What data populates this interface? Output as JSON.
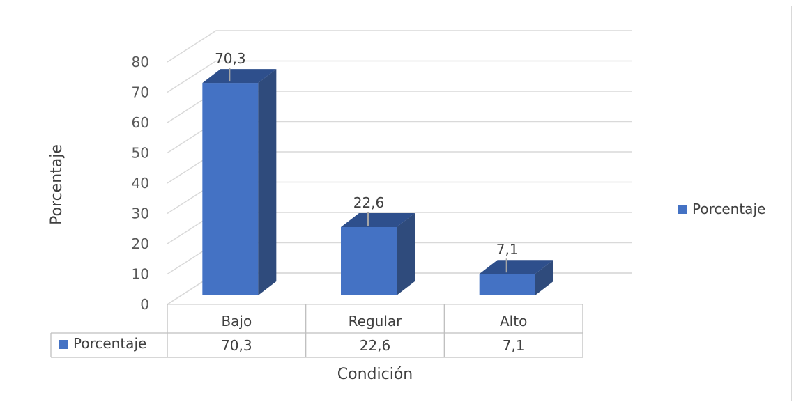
{
  "chart_data": {
    "type": "bar",
    "categories": [
      "Bajo",
      "Regular",
      "Alto"
    ],
    "series": [
      {
        "name": "Porcentaje",
        "values": [
          70.3,
          22.6,
          7.1
        ],
        "labels": [
          "70,3",
          "22,6",
          "7,1"
        ]
      }
    ],
    "xlabel": "Condición",
    "ylabel": "Porcentaje",
    "ylim": [
      0,
      80
    ],
    "yticks": [
      "0",
      "10",
      "20",
      "30",
      "40",
      "50",
      "60",
      "70",
      "80"
    ],
    "grid": true,
    "legend": {
      "position": "right",
      "entries": [
        "Porcentaje"
      ]
    },
    "data_table": true,
    "colors": {
      "bar_front": "#4472c4",
      "bar_side": "#2f4b7c",
      "bar_top": "#2e4f8c",
      "grid": "#d9d9d9"
    }
  }
}
